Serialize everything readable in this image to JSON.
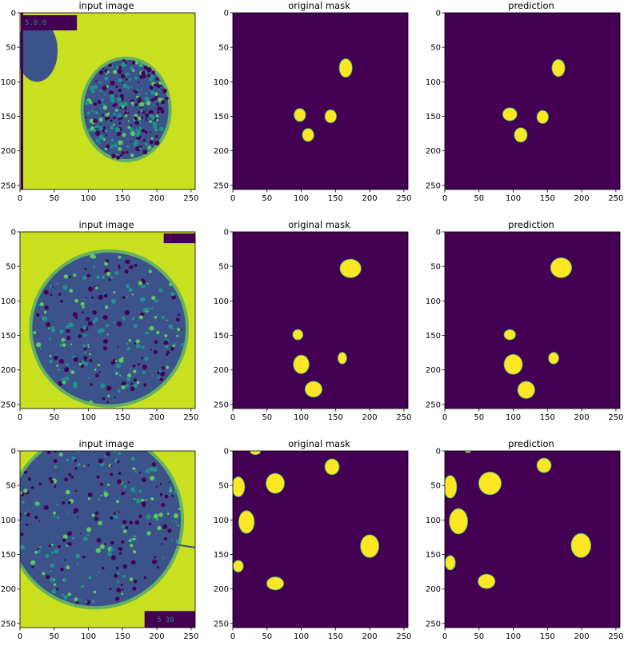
{
  "figure": {
    "rows": [
      {
        "panels": [
          {
            "kind": "image",
            "title": "input image",
            "overlay_text": "5.0.0"
          },
          {
            "kind": "mask",
            "title": "original mask"
          },
          {
            "kind": "mask",
            "title": "prediction"
          }
        ]
      },
      {
        "panels": [
          {
            "kind": "image",
            "title": "input image",
            "overlay_text": ""
          },
          {
            "kind": "mask",
            "title": "original mask"
          },
          {
            "kind": "mask",
            "title": "prediction"
          }
        ]
      },
      {
        "panels": [
          {
            "kind": "image",
            "title": "input image",
            "overlay_text": "5 30"
          },
          {
            "kind": "mask",
            "title": "original mask"
          },
          {
            "kind": "mask",
            "title": "prediction"
          }
        ]
      }
    ],
    "x_ticks": [
      "0",
      "50",
      "100",
      "150",
      "200",
      "250"
    ],
    "y_ticks": [
      "0",
      "50",
      "100",
      "150",
      "200",
      "250"
    ],
    "colors": {
      "mask_background": "#440154",
      "mask_foreground": "#fde725",
      "mask_edge": "#35b779",
      "image_low": "#440154",
      "image_mid": "#21918c",
      "image_high": "#c8e020",
      "image_bright": "#e8f51e"
    }
  }
}
